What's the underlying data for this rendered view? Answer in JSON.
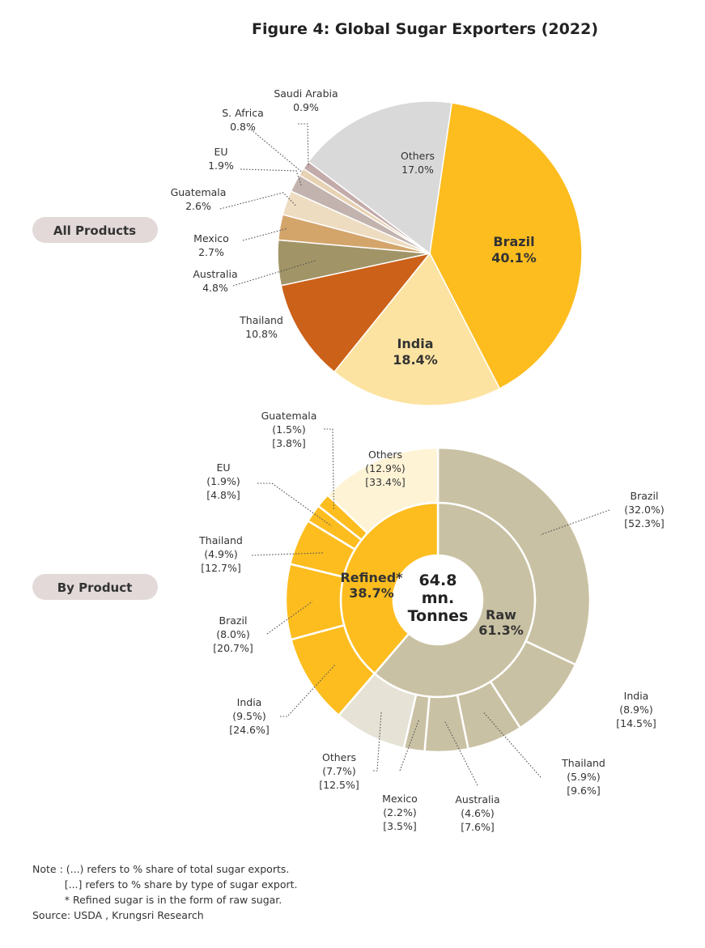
{
  "title": "Figure 4: Global Sugar Exporters (2022)",
  "pills": {
    "all_products": "All Products",
    "by_product": "By Product"
  },
  "colors": {
    "brazil": "#FDBD1F",
    "india": "#FDE3A1",
    "thailand": "#CC6119",
    "australia": "#A19467",
    "mexico": "#D3A56B",
    "guatemala": "#EEDCC1",
    "eu": "#C2B3AF",
    "s_africa": "#E7D2B3",
    "saudi_arabia": "#C3ABAA",
    "others": "#D9D9D9",
    "refined": "#FDBD1F",
    "raw": "#C9C1A3",
    "refined_others": "#FFF3D6",
    "raw_others": "#E6E2D6"
  },
  "chart_data": [
    {
      "type": "pie",
      "name": "All Products",
      "slices": [
        {
          "label": "Brazil",
          "value": 40.1,
          "text": "40.1%"
        },
        {
          "label": "India",
          "value": 18.4,
          "text": "18.4%"
        },
        {
          "label": "Thailand",
          "value": 10.8,
          "text": "10.8%"
        },
        {
          "label": "Australia",
          "value": 4.8,
          "text": "4.8%"
        },
        {
          "label": "Mexico",
          "value": 2.7,
          "text": "2.7%"
        },
        {
          "label": "Guatemala",
          "value": 2.6,
          "text": "2.6%"
        },
        {
          "label": "EU",
          "value": 1.9,
          "text": "1.9%"
        },
        {
          "label": "S. Africa",
          "value": 0.8,
          "text": "0.8%"
        },
        {
          "label": "Saudi Arabia",
          "value": 0.9,
          "text": "0.9%"
        },
        {
          "label": "Others",
          "value": 17.0,
          "text": "17.0%"
        }
      ]
    },
    {
      "type": "pie",
      "name": "By Product",
      "center_text": [
        "64.8",
        "mn.",
        "Tonnes"
      ],
      "inner": [
        {
          "label": "Raw",
          "value": 61.3,
          "text": "61.3%"
        },
        {
          "label": "Refined*",
          "value": 38.7,
          "text": "38.7%"
        }
      ],
      "outer": [
        {
          "group": "Raw",
          "label": "Brazil",
          "share_total": "(32.0%)",
          "share_type": "[52.3%]",
          "value": 32.0
        },
        {
          "group": "Raw",
          "label": "India",
          "share_total": "(8.9%)",
          "share_type": "[14.5%]",
          "value": 8.9
        },
        {
          "group": "Raw",
          "label": "Thailand",
          "share_total": "(5.9%)",
          "share_type": "[9.6%]",
          "value": 5.9
        },
        {
          "group": "Raw",
          "label": "Australia",
          "share_total": "(4.6%)",
          "share_type": "[7.6%]",
          "value": 4.6
        },
        {
          "group": "Raw",
          "label": "Mexico",
          "share_total": "(2.2%)",
          "share_type": "[3.5%]",
          "value": 2.2
        },
        {
          "group": "Raw",
          "label": "Others",
          "share_total": "(7.7%)",
          "share_type": "[12.5%]",
          "value": 7.7
        },
        {
          "group": "Refined",
          "label": "India",
          "share_total": "(9.5%)",
          "share_type": "[24.6%]",
          "value": 9.5
        },
        {
          "group": "Refined",
          "label": "Brazil",
          "share_total": "(8.0%)",
          "share_type": "[20.7%]",
          "value": 8.0
        },
        {
          "group": "Refined",
          "label": "Thailand",
          "share_total": "(4.9%)",
          "share_type": "[12.7%]",
          "value": 4.9
        },
        {
          "group": "Refined",
          "label": "EU",
          "share_total": "(1.9%)",
          "share_type": "[4.8%]",
          "value": 1.9
        },
        {
          "group": "Refined",
          "label": "Guatemala",
          "share_total": "(1.5%)",
          "share_type": "[3.8%]",
          "value": 1.5
        },
        {
          "group": "Refined",
          "label": "Others",
          "share_total": "(12.9%)",
          "share_type": "[33.4%]",
          "value": 12.9
        }
      ]
    }
  ],
  "notes": [
    "Note : (...) refers to % share of total sugar exports.",
    "          [...] refers to % share by type of sugar export.",
    "          * Refined sugar is in the form of raw sugar.",
    "Source: USDA , Krungsri Research"
  ]
}
